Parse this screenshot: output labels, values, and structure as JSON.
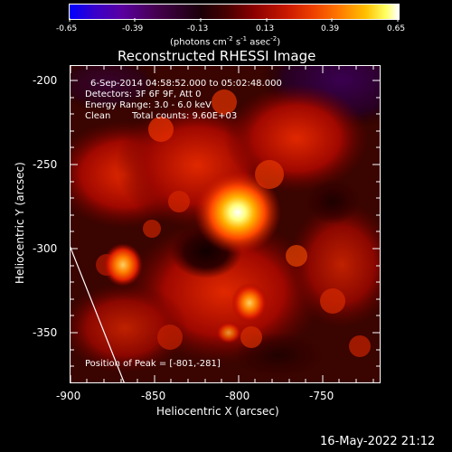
{
  "colorbar": {
    "tick_labels": [
      "-0.65",
      "-0.39",
      "-0.13",
      "0.13",
      "0.39",
      "0.65"
    ],
    "unit_prefix": "(photons cm",
    "unit_exp1": "-2",
    "unit_mid": " s",
    "unit_exp2": "-1",
    "unit_mid2": " asec",
    "unit_exp3": "-2",
    "unit_suffix": ")"
  },
  "plot": {
    "title": "Reconstructed RHESSI Image",
    "time_range": "6-Sep-2014 04:58:52.000 to 05:02:48.000",
    "detectors": "Detectors: 3F 6F 9F, Att 0",
    "energy_range": "Energy Range: 3.0 - 6.0 keV",
    "clean_label": "Clean",
    "total_counts": "Total counts: 9.60E+03",
    "peak_position": "Position of Peak = [-801,-281]",
    "xlabel": "Heliocentric X (arcsec)",
    "ylabel": "Heliocentric Y (arcsec)",
    "x_ticks": [
      "-900",
      "-850",
      "-800",
      "-750"
    ],
    "y_ticks": [
      "-200",
      "-250",
      "-300",
      "-350"
    ]
  },
  "footer": {
    "timestamp": "16-May-2022 21:12"
  }
}
